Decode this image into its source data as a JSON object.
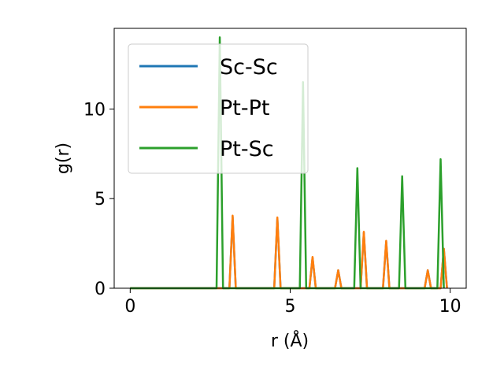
{
  "chart_data": {
    "type": "line",
    "title": "",
    "xlabel": "r (Å)",
    "ylabel": "g(r)",
    "xlim": [
      -0.5,
      10.5
    ],
    "ylim": [
      0,
      14.5
    ],
    "xticks": [
      0,
      5,
      10
    ],
    "yticks": [
      0,
      5,
      10
    ],
    "grid": false,
    "legend_position": "upper-left",
    "series": [
      {
        "name": "Sc-Sc",
        "color": "#1f77b4",
        "x": [
          0,
          3.1,
          3.2,
          3.3,
          4.5,
          4.6,
          4.7,
          5.6,
          5.7,
          5.8,
          6.4,
          6.5,
          6.6,
          7.2,
          7.3,
          7.4,
          7.9,
          8.0,
          8.1,
          9.2,
          9.3,
          9.4,
          9.7,
          9.8,
          9.9
        ],
        "y": [
          0,
          0,
          4.0,
          0,
          0,
          3.9,
          0,
          0,
          1.7,
          0,
          0,
          1.0,
          0,
          0,
          3.1,
          0,
          0,
          2.6,
          0,
          0,
          1.0,
          0,
          0,
          2.2,
          0
        ]
      },
      {
        "name": "Pt-Pt",
        "color": "#ff7f0e",
        "x": [
          0,
          3.1,
          3.2,
          3.3,
          4.5,
          4.6,
          4.7,
          5.6,
          5.7,
          5.8,
          6.4,
          6.5,
          6.6,
          7.2,
          7.3,
          7.4,
          7.9,
          8.0,
          8.1,
          9.2,
          9.3,
          9.4,
          9.7,
          9.8,
          9.9
        ],
        "y": [
          0,
          0,
          4.05,
          0,
          0,
          3.95,
          0,
          0,
          1.75,
          0,
          0,
          1.0,
          0,
          0,
          3.15,
          0,
          0,
          2.65,
          0,
          0,
          1.0,
          0,
          0,
          2.2,
          0
        ]
      },
      {
        "name": "Pt-Sc",
        "color": "#2ca02c",
        "x": [
          0,
          2.7,
          2.8,
          2.9,
          5.3,
          5.4,
          5.5,
          7.0,
          7.1,
          7.2,
          8.4,
          8.5,
          8.6,
          9.6,
          9.7,
          9.8
        ],
        "y": [
          0,
          0,
          14.0,
          0,
          0,
          11.5,
          0,
          0,
          6.7,
          0,
          0,
          6.25,
          0,
          0,
          7.2,
          0
        ]
      }
    ]
  }
}
